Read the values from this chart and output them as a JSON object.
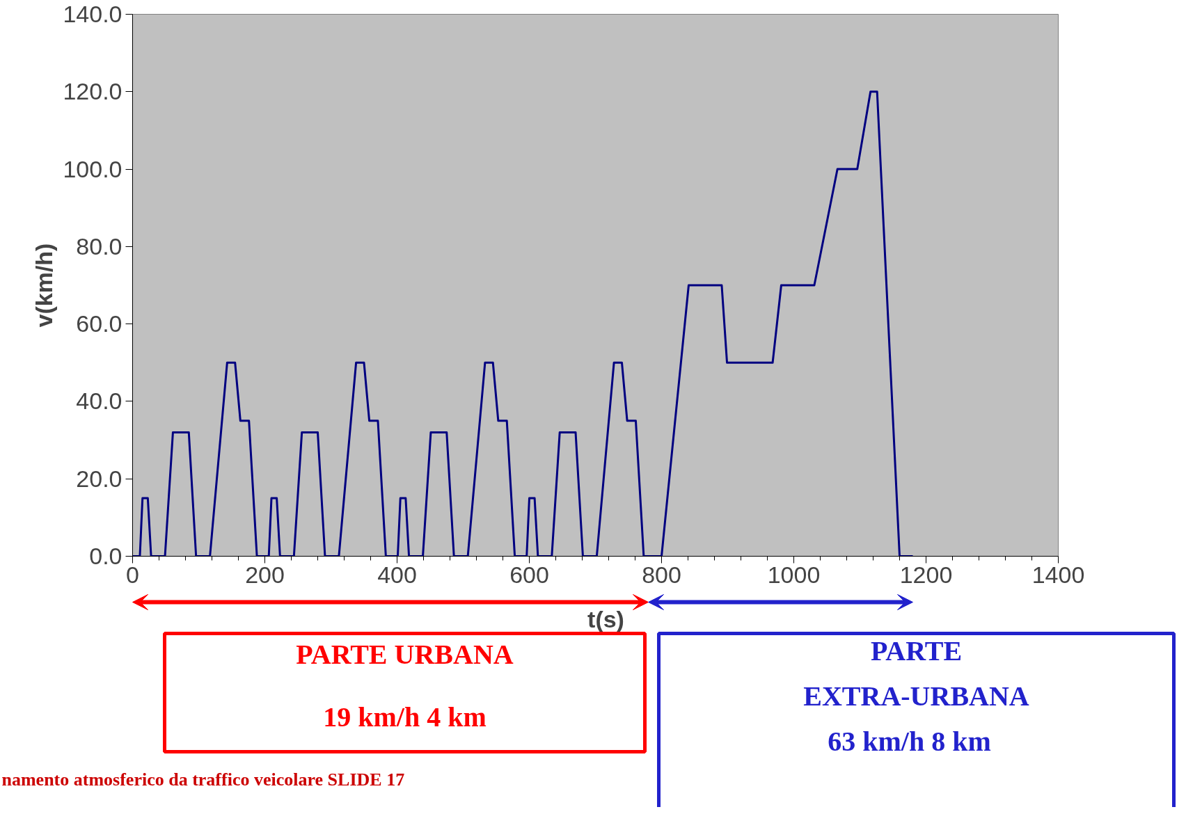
{
  "chart_data": {
    "type": "line",
    "xlabel": "t(s)",
    "ylabel": "v(km/h)",
    "x": [
      0,
      11,
      15,
      23,
      28,
      49,
      61,
      85,
      96,
      117,
      143,
      155,
      163,
      176,
      188,
      195,
      206,
      210,
      218,
      223,
      244,
      256,
      280,
      291,
      312,
      338,
      350,
      358,
      371,
      383,
      390,
      401,
      405,
      413,
      418,
      439,
      451,
      475,
      486,
      507,
      533,
      545,
      553,
      566,
      578,
      585,
      596,
      600,
      608,
      613,
      634,
      646,
      670,
      681,
      702,
      728,
      740,
      748,
      761,
      773,
      780,
      800,
      841,
      891,
      899,
      968,
      981,
      1031,
      1066,
      1096,
      1116,
      1126,
      1160,
      1180
    ],
    "series": [
      {
        "color": "#000080",
        "values": [
          0,
          0,
          15,
          15,
          0,
          0,
          32,
          32,
          0,
          0,
          50,
          50,
          35,
          35,
          0,
          0,
          0,
          15,
          15,
          0,
          0,
          32,
          32,
          0,
          0,
          50,
          50,
          35,
          35,
          0,
          0,
          0,
          15,
          15,
          0,
          0,
          32,
          32,
          0,
          0,
          50,
          50,
          35,
          35,
          0,
          0,
          0,
          15,
          15,
          0,
          0,
          32,
          32,
          0,
          0,
          50,
          50,
          35,
          35,
          0,
          0,
          0,
          70,
          70,
          50,
          50,
          70,
          70,
          100,
          100,
          120,
          120,
          0,
          0
        ]
      }
    ],
    "xlim": [
      0,
      1400
    ],
    "xticks": [
      0,
      200,
      400,
      600,
      800,
      1000,
      1200,
      1400
    ],
    "ylim": [
      0,
      140
    ],
    "yticks": [
      {
        "value": 0,
        "label": "0.0"
      },
      {
        "value": 20,
        "label": "20.0"
      },
      {
        "value": 40,
        "label": "40.0"
      },
      {
        "value": 60,
        "label": "60.0"
      },
      {
        "value": 80,
        "label": "80.0"
      },
      {
        "value": 100,
        "label": "100.0"
      },
      {
        "value": 120,
        "label": "120.0"
      },
      {
        "value": 140,
        "label": "140.0"
      }
    ],
    "grid": false,
    "annotations": [
      "PARTE URBANA",
      "19 km/h 4 km",
      "PARTE",
      "EXTRA-URBANA",
      "63 km/h   8 km",
      "namento atmosferico da traffico veicolare SLIDE   17"
    ]
  }
}
